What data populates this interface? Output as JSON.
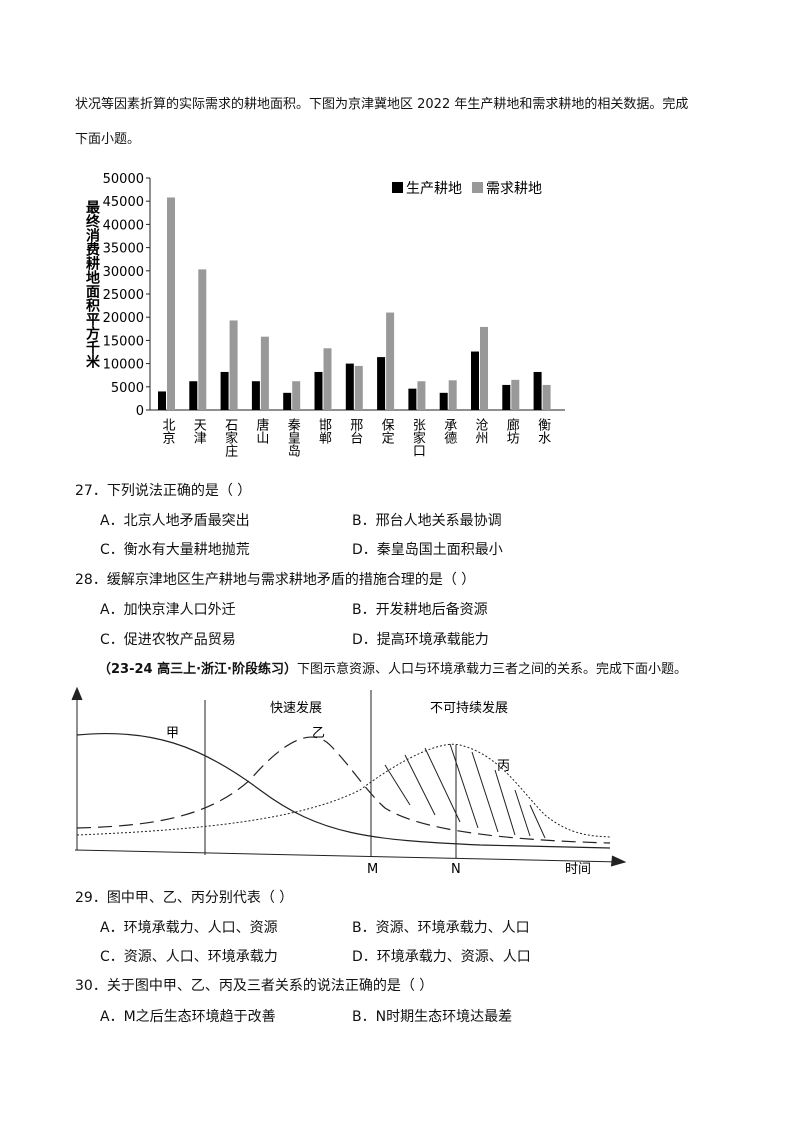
{
  "intro": {
    "lines": [
      "状况等因素折算的实际需求的耕地面积。下图为京津冀地区 2022 年生产耕地和需求耕地的相关数据。完成",
      "下面小题。"
    ]
  },
  "chart": {
    "type": "bar",
    "y_label": "最终消费耕地面积平方千米",
    "categories": [
      "北京",
      "天津",
      "石家庄",
      "唐山",
      "秦皇岛",
      "邯郸",
      "邢台",
      "保定",
      "张家口",
      "承德",
      "沧州",
      "廊坊",
      "衡水"
    ],
    "series": [
      {
        "name": "生产耕地",
        "color": "#000000",
        "values": [
          4000,
          6200,
          8200,
          6200,
          3700,
          8200,
          10000,
          11400,
          4600,
          3700,
          12600,
          5400,
          8200
        ]
      },
      {
        "name": "需求耕地",
        "color": "#999999",
        "values": [
          45800,
          30300,
          19300,
          15800,
          6200,
          13300,
          9500,
          21000,
          6200,
          6400,
          17900,
          6500,
          5400
        ]
      }
    ],
    "ylim": [
      0,
      50000
    ],
    "yticks": [
      0,
      5000,
      10000,
      15000,
      20000,
      25000,
      30000,
      35000,
      40000,
      45000,
      50000
    ]
  },
  "questions": [
    {
      "stem": "27．下列说法正确的是（ ）",
      "options": [
        "A．北京人地矛盾最突出",
        "B．邢台人地关系最协调",
        "C．衡水有大量耕地抛荒",
        "D．秦皇岛国土面积最小"
      ]
    },
    {
      "stem": "28．缓解京津地区生产耕地与需求耕地矛盾的措施合理的是（ ）",
      "options": [
        "A．加快京津人口外迁",
        "B．开发耕地后备资源",
        "C．促进农牧产品贸易",
        "D．提高环境承载能力"
      ]
    }
  ],
  "section": {
    "source": "（23-24 高三上·浙江·阶段练习）",
    "text": "下图示意资源、人口与环境承载力三者之间的关系。完成下面小题。"
  },
  "diagram": {
    "stages": [
      "快速发展",
      "不可持续发展"
    ],
    "curves": [
      "甲",
      "乙",
      "丙"
    ],
    "points": [
      "M",
      "N"
    ],
    "x_label": "时间"
  },
  "questions2": [
    {
      "stem": "29．图中甲、乙、丙分别代表（ ）",
      "options": [
        "A．环境承载力、人口、资源",
        "B．资源、环境承载力、人口",
        "C．资源、人口、环境承载力",
        "D．环境承载力、资源、人口"
      ]
    },
    {
      "stem": "30．关于图中甲、乙、丙及三者关系的说法正确的是（ ）",
      "options": [
        "A．M之后生态环境趋于改善",
        "B．N时期生态环境达最差"
      ]
    }
  ]
}
